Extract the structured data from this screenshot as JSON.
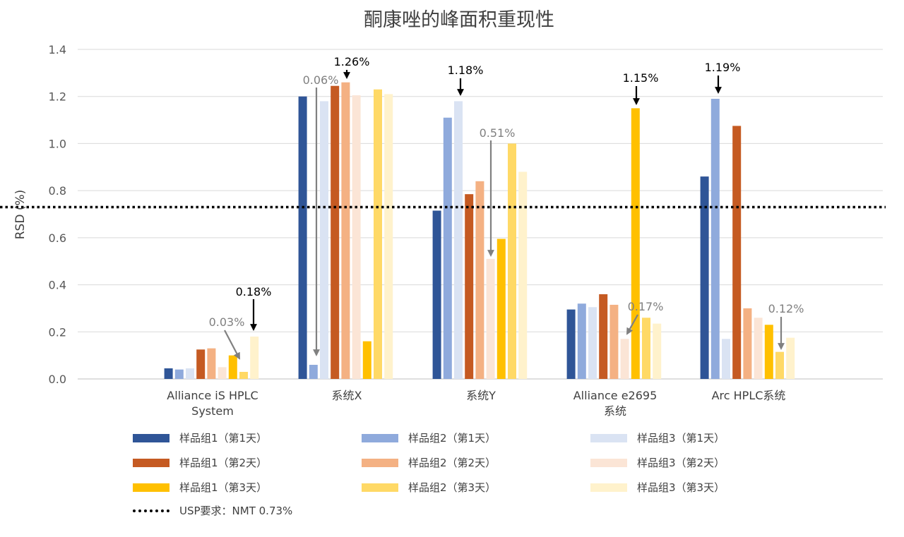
{
  "chart_data": {
    "type": "bar",
    "title": "酮康唑的峰面积重现性",
    "ylabel": "RSD (%)",
    "ylim": [
      0,
      1.4
    ],
    "yticks": [
      "0.0",
      "0.2",
      "0.4",
      "0.6",
      "0.8",
      "1.0",
      "1.2",
      "1.4"
    ],
    "grid": true,
    "legend_position": "bottom",
    "categories": [
      [
        "Alliance iS HPLC",
        "System"
      ],
      [
        "系统X"
      ],
      [
        "系统Y"
      ],
      [
        "Alliance e2695",
        "系统"
      ],
      [
        "Arc HPLC系统"
      ]
    ],
    "series": [
      {
        "name": "样品组1（第1天）",
        "color": "#2F5597",
        "values": [
          0.045,
          1.2,
          0.715,
          0.295,
          0.86
        ]
      },
      {
        "name": "样品组2（第1天）",
        "color": "#8FAADC",
        "values": [
          0.04,
          0.06,
          1.11,
          0.32,
          1.19
        ]
      },
      {
        "name": "样品组3（第1天）",
        "color": "#DAE3F3",
        "values": [
          0.045,
          1.18,
          1.18,
          0.305,
          0.17
        ]
      },
      {
        "name": "样品组1（第2天）",
        "color": "#C55A22",
        "values": [
          0.125,
          1.245,
          0.785,
          0.36,
          1.075
        ]
      },
      {
        "name": "样品组2（第2天）",
        "color": "#F4B183",
        "values": [
          0.13,
          1.26,
          0.84,
          0.315,
          0.3
        ]
      },
      {
        "name": "样品组3（第2天）",
        "color": "#FBE5D6",
        "values": [
          0.05,
          1.205,
          0.51,
          0.17,
          0.26
        ]
      },
      {
        "name": "样品组1（第3天）",
        "color": "#FFC000",
        "values": [
          0.1,
          0.16,
          0.595,
          1.15,
          0.23
        ]
      },
      {
        "name": "样品组2（第3天）",
        "color": "#FFD966",
        "values": [
          0.03,
          1.23,
          1.0,
          0.26,
          0.115
        ]
      },
      {
        "name": "样品组3（第3天）",
        "color": "#FFF2CC",
        "values": [
          0.18,
          1.21,
          0.88,
          0.235,
          0.175
        ]
      }
    ],
    "reference_line": {
      "label": "USP要求：NMT 0.73%",
      "value": 0.73,
      "style": "dotted",
      "color": "#000000"
    },
    "annotations": [
      {
        "text": "0.03%",
        "category": 0,
        "series": 7,
        "color": "#808080"
      },
      {
        "text": "0.18%",
        "category": 0,
        "series": 8,
        "color": "#000000"
      },
      {
        "text": "0.06%",
        "category": 1,
        "series": 1,
        "color": "#808080"
      },
      {
        "text": "1.26%",
        "category": 1,
        "series": 4,
        "color": "#000000"
      },
      {
        "text": "1.18%",
        "category": 2,
        "series": 2,
        "color": "#000000"
      },
      {
        "text": "0.51%",
        "category": 2,
        "series": 5,
        "color": "#808080"
      },
      {
        "text": "1.15%",
        "category": 3,
        "series": 6,
        "color": "#000000"
      },
      {
        "text": "0.17%",
        "category": 3,
        "series": 5,
        "color": "#808080"
      },
      {
        "text": "1.19%",
        "category": 4,
        "series": 1,
        "color": "#000000"
      },
      {
        "text": "0.12%",
        "category": 4,
        "series": 7,
        "color": "#808080"
      }
    ]
  }
}
